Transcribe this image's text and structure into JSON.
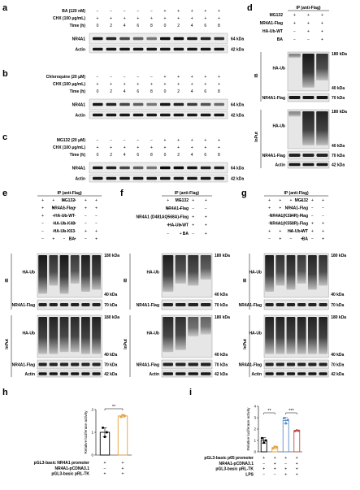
{
  "panels": {
    "a": {
      "letter": "a",
      "rows": [
        {
          "label": "BA (120 nM)",
          "signs": [
            "−",
            "−",
            "−",
            "−",
            "−",
            "+",
            "+",
            "+",
            "+",
            "+"
          ]
        },
        {
          "label": "CHX (100 μg/mL)",
          "signs": [
            "+",
            "+",
            "+",
            "+",
            "+",
            "+",
            "+",
            "+",
            "+",
            "+"
          ]
        },
        {
          "label": "Time (h)",
          "signs": [
            "0",
            "2",
            "4",
            "6",
            "8",
            "0",
            "2",
            "4",
            "6",
            "8"
          ]
        }
      ],
      "blots": [
        {
          "label": "NR4A1",
          "kda": "64 kDa",
          "levels": [
            0.9,
            0.85,
            0.7,
            0.6,
            0.5,
            0.95,
            0.95,
            0.9,
            0.85,
            0.8
          ]
        },
        {
          "label": "Actin",
          "kda": "42 kDa",
          "levels": [
            0.9,
            0.9,
            0.9,
            0.9,
            0.9,
            0.9,
            0.9,
            0.9,
            0.9,
            0.9
          ]
        }
      ]
    },
    "b": {
      "letter": "b",
      "rows": [
        {
          "label": "Chloroquine (20 μM)",
          "signs": [
            "−",
            "−",
            "−",
            "−",
            "−",
            "+",
            "+",
            "+",
            "+",
            "+"
          ]
        },
        {
          "label": "CHX (100 μg/mL)",
          "signs": [
            "+",
            "+",
            "+",
            "+",
            "+",
            "+",
            "+",
            "+",
            "+",
            "+"
          ]
        },
        {
          "label": "Time (h)",
          "signs": [
            "0",
            "2",
            "4",
            "6",
            "8",
            "0",
            "2",
            "4",
            "6",
            "8"
          ]
        }
      ],
      "blots": [
        {
          "label": "NR4A1",
          "kda": "64 kDa",
          "levels": [
            0.9,
            0.85,
            0.7,
            0.6,
            0.5,
            0.9,
            0.85,
            0.75,
            0.65,
            0.55
          ]
        },
        {
          "label": "Actin",
          "kda": "42 kDa",
          "levels": [
            0.9,
            0.9,
            0.9,
            0.9,
            0.9,
            0.9,
            0.9,
            0.9,
            0.9,
            0.9
          ]
        }
      ]
    },
    "c": {
      "letter": "c",
      "rows": [
        {
          "label": "MG132 (20 μM)",
          "signs": [
            "−",
            "−",
            "−",
            "−",
            "−",
            "+",
            "+",
            "+",
            "+",
            "+"
          ]
        },
        {
          "label": "CHX (100 μg/mL)",
          "signs": [
            "+",
            "+",
            "+",
            "+",
            "+",
            "+",
            "+",
            "+",
            "+",
            "+"
          ]
        },
        {
          "label": "Time (h)",
          "signs": [
            "0",
            "2",
            "4",
            "6",
            "8",
            "0",
            "2",
            "4",
            "6",
            "8"
          ]
        }
      ],
      "blots": [
        {
          "label": "NR4A1",
          "kda": "64 kDa",
          "levels": [
            0.9,
            0.85,
            0.7,
            0.6,
            0.5,
            0.95,
            0.95,
            0.9,
            0.85,
            0.85
          ]
        },
        {
          "label": "Actin",
          "kda": "42 kDa",
          "levels": [
            0.9,
            0.9,
            0.9,
            0.9,
            0.9,
            0.9,
            0.9,
            0.9,
            0.9,
            0.9
          ]
        }
      ]
    },
    "d": {
      "letter": "d",
      "header": "IP (anti-Flag)",
      "rows": [
        {
          "label": "MG132",
          "signs": [
            "+",
            "+",
            "+"
          ]
        },
        {
          "label": "NR4A1-Flag",
          "signs": [
            "+",
            "+",
            "+"
          ]
        },
        {
          "label": "HA-Ub-WT",
          "signs": [
            "−",
            "+",
            "+"
          ]
        },
        {
          "label": "BA",
          "signs": [
            "−",
            "−",
            "+"
          ]
        }
      ],
      "ib_label": "IB",
      "input_label": "InPut",
      "ib": {
        "smear": "HA-Ub",
        "kda_top": "180 kDa",
        "kda_bottom": "40 kDa",
        "bait": "NR4A1-Flag",
        "bait_kda": "70 kDa"
      },
      "input": {
        "smear": "HA-Ub",
        "kda_top": "180 kDa",
        "kda_bottom": "40 kDa",
        "bait": "NR4A1-Flag",
        "bait_kda": "70 kDa",
        "actin": "Actin",
        "actin_kda": "42 kDa"
      }
    },
    "e": {
      "letter": "e",
      "header": "IP (anti-Flag)",
      "rows": [
        {
          "label": "MG132",
          "signs": [
            "+",
            "+",
            "+",
            "+",
            "+",
            "+"
          ]
        },
        {
          "label": "NR4A1-Flag",
          "signs": [
            "+",
            "+",
            "+",
            "+",
            "+",
            "+"
          ]
        },
        {
          "label": "HA-Ub-WT",
          "signs": [
            "+",
            "+",
            "−",
            "−",
            "−",
            "−"
          ]
        },
        {
          "label": "HA-Ub-K48",
          "signs": [
            "−",
            "−",
            "+",
            "+",
            "−",
            "−"
          ]
        },
        {
          "label": "HA-Ub-K63",
          "signs": [
            "−",
            "−",
            "−",
            "−",
            "+",
            "+"
          ]
        },
        {
          "label": "BA",
          "signs": [
            "−",
            "+",
            "−",
            "+",
            "−",
            "+"
          ]
        }
      ],
      "ib_label": "IB",
      "input_label": "InPut",
      "ib": {
        "smear": "HA-Ub",
        "kda_top": "180 kDa",
        "kda_bottom": "40 kDa",
        "bait": "NR4A1-Flag",
        "bait_kda": "70 kDa"
      },
      "input": {
        "smear": "HA-Ub",
        "kda_top": "180 kDa",
        "kda_bottom": "40 kDa",
        "bait": "NR4A1-Flag",
        "bait_kda": "70 kDa",
        "actin": "Actin",
        "actin_kda": "42 kDa"
      }
    },
    "f": {
      "letter": "f",
      "header": "IP (anti-Flag)",
      "rows": [
        {
          "label": "MG132",
          "signs": [
            "+",
            "+",
            "+",
            "+"
          ]
        },
        {
          "label": "NR4A1-Flag",
          "signs": [
            "+",
            "+",
            "−",
            "−"
          ]
        },
        {
          "label": "NR4A1 (D481AQ568A)-Flag",
          "signs": [
            "−",
            "−",
            "+",
            "+"
          ]
        },
        {
          "label": "HA-Ub-WT",
          "signs": [
            "+",
            "+",
            "+",
            "+"
          ]
        },
        {
          "label": "BA",
          "signs": [
            "−",
            "+",
            "−",
            "+"
          ]
        }
      ],
      "ib_label": "IB",
      "input_label": "InPut",
      "ib": {
        "smear": "HA-Ub",
        "kda_top": "180 kDa",
        "kda_bottom": "40 kDa",
        "bait": "NR4A1-Flag",
        "bait_kda": "70 kDa"
      },
      "input": {
        "smear": "HA-Ub",
        "kda_top": "180 kDa",
        "kda_bottom": "40 kDa",
        "bait": "NR4A1-Flag",
        "bait_kda": "70 kDa",
        "actin": "Actin",
        "actin_kda": "42 kDa"
      }
    },
    "g": {
      "letter": "g",
      "header": "IP (anti-Flag)",
      "rows": [
        {
          "label": "MG132",
          "signs": [
            "+",
            "+",
            "+",
            "+",
            "+",
            "+"
          ]
        },
        {
          "label": "NR4A1-Flag",
          "signs": [
            "+",
            "+",
            "−",
            "−",
            "−",
            "−"
          ]
        },
        {
          "label": "NR4A1(K334R)-Flag",
          "signs": [
            "−",
            "−",
            "+",
            "+",
            "−",
            "−"
          ]
        },
        {
          "label": "NR4A1(K558R)-Flag",
          "signs": [
            "−",
            "−",
            "−",
            "−",
            "+",
            "+"
          ]
        },
        {
          "label": "HA-Ub-WT",
          "signs": [
            "+",
            "+",
            "+",
            "+",
            "+",
            "+"
          ]
        },
        {
          "label": "BA",
          "signs": [
            "−",
            "+",
            "−",
            "+",
            "−",
            "+"
          ]
        }
      ],
      "ib_label": "IB",
      "input_label": "InPut",
      "ib": {
        "smear": "HA-Ub",
        "kda_top": "180 kDa",
        "kda_bottom": "40 kDa",
        "bait": "NR4A1-Flag",
        "bait_kda": "70 kDa"
      },
      "input": {
        "smear": "HA-Ub",
        "kda_top": "180 kDa",
        "kda_bottom": "40 kDa",
        "bait": "NR4A1-Flag",
        "bait_kda": "70 kDa",
        "actin": "Actin",
        "actin_kda": "42 kDa"
      }
    },
    "h": {
      "letter": "h",
      "significance": "**",
      "rows": [
        {
          "label": "pGL3-basic NR4A1 promoter",
          "signs": [
            "+",
            "+"
          ]
        },
        {
          "label": "NR4A1-pCDNA3.1",
          "signs": [
            "−",
            "+"
          ]
        },
        {
          "label": "pGL3-basic pRL-TK",
          "signs": [
            "+",
            "+"
          ]
        }
      ]
    },
    "i": {
      "letter": "i",
      "significance": [
        "**",
        "***"
      ],
      "rows": [
        {
          "label": "pGL3-basic p65 promoter",
          "signs": [
            "+",
            "+",
            "+",
            "+"
          ]
        },
        {
          "label": "NR4A1-pCDNA3.1",
          "signs": [
            "−",
            "+",
            "−",
            "+"
          ]
        },
        {
          "label": "pGL3-basic pRL-TK",
          "signs": [
            "+",
            "+",
            "+",
            "+"
          ]
        },
        {
          "label": "LPS",
          "signs": [
            "−",
            "−",
            "+",
            "+"
          ]
        }
      ]
    }
  },
  "chart_data": [
    {
      "panel": "h",
      "type": "bar",
      "ylabel": "Relative luciferase activity",
      "ylim": [
        0,
        2
      ],
      "yticks": [
        "0",
        "1",
        "2"
      ],
      "categories": [
        "1",
        "2"
      ],
      "values": [
        1.0,
        1.72
      ],
      "errors": [
        0.2,
        0.06
      ],
      "colors": [
        "#000000",
        "#e8a33d"
      ],
      "points": [
        [
          1.2,
          0.8,
          1.0
        ],
        [
          1.68,
          1.75,
          1.72
        ]
      ]
    },
    {
      "panel": "i",
      "type": "bar",
      "ylabel": "Relative luciferase activity",
      "ylim": [
        0,
        4
      ],
      "yticks": [
        "0",
        "1",
        "2",
        "3",
        "4"
      ],
      "categories": [
        "1",
        "2",
        "3",
        "4"
      ],
      "values": [
        1.0,
        0.38,
        2.75,
        1.85
      ],
      "errors": [
        0.25,
        0.12,
        0.3,
        0.05
      ],
      "colors": [
        "#000000",
        "#e8a33d",
        "#5b8fc9",
        "#c0504d"
      ],
      "points": [
        [
          1.2,
          0.8,
          1.0
        ],
        [
          0.3,
          0.45,
          0.4
        ],
        [
          2.95,
          2.5,
          2.8
        ],
        [
          1.82,
          1.88,
          1.85
        ]
      ]
    }
  ]
}
